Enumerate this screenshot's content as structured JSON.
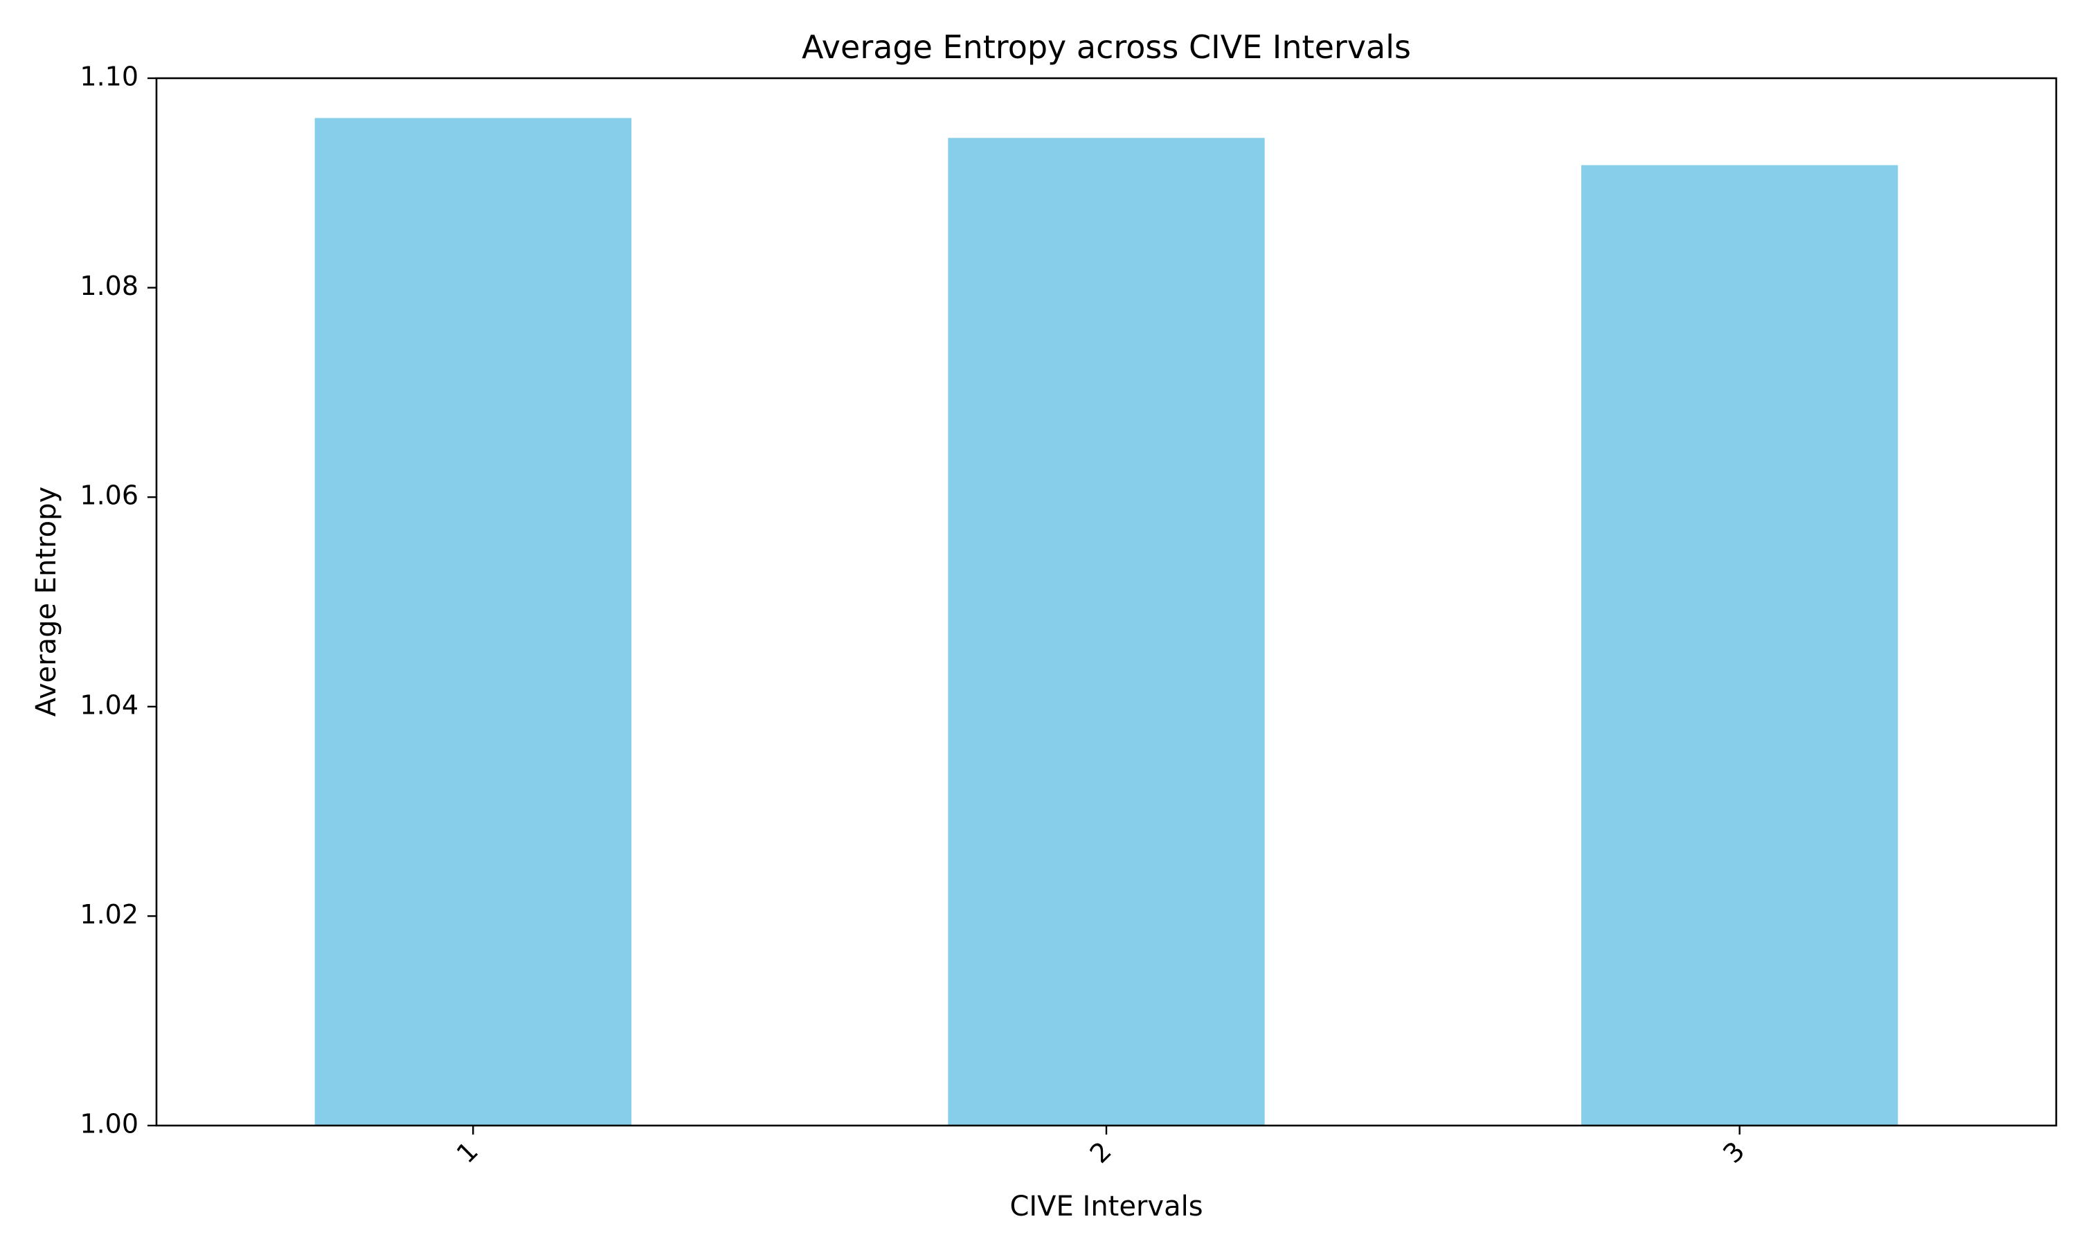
{
  "chart_data": {
    "type": "bar",
    "title": "Average Entropy across CIVE Intervals",
    "xlabel": "CIVE Intervals",
    "ylabel": "Average Entropy",
    "categories": [
      "1",
      "2",
      "3"
    ],
    "values": [
      1.0962,
      1.0943,
      1.0917
    ],
    "ylim": [
      1.0,
      1.1
    ],
    "yticks": [
      "1.00",
      "1.02",
      "1.04",
      "1.06",
      "1.08",
      "1.10"
    ],
    "bar_color": "#87ceeb",
    "grid": false,
    "legend": "none",
    "xtick_rotation": 45
  }
}
